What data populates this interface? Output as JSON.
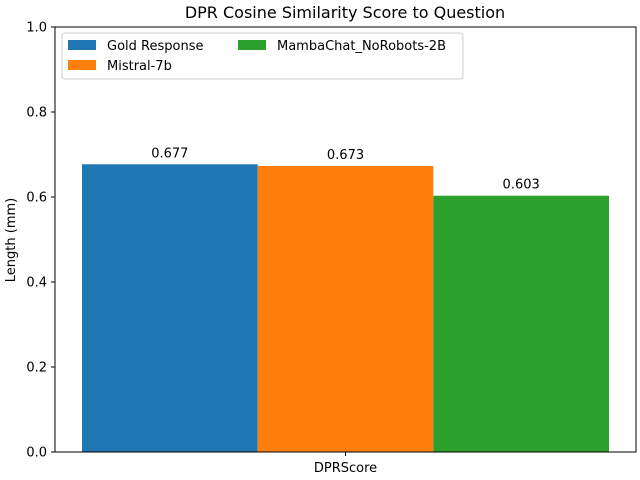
{
  "chart_data": {
    "type": "bar",
    "title": "DPR Cosine Similarity Score to Question",
    "xlabel": "",
    "ylabel": "Length (mm)",
    "categories": [
      "DPRScore"
    ],
    "series": [
      {
        "name": "Gold Response",
        "values": [
          0.677
        ],
        "color": "#1f77b4",
        "label": "0.677"
      },
      {
        "name": "Mistral-7b",
        "values": [
          0.673
        ],
        "color": "#ff7f0e",
        "label": "0.673"
      },
      {
        "name": "MambaChat_NoRobots-2B",
        "values": [
          0.603
        ],
        "color": "#2ca02c",
        "label": "0.603"
      }
    ],
    "ylim": [
      0,
      1.0
    ],
    "yticks": [
      "0.0",
      "0.2",
      "0.4",
      "0.6",
      "0.8",
      "1.0"
    ],
    "grid": false,
    "legend_placement": "top-left"
  }
}
